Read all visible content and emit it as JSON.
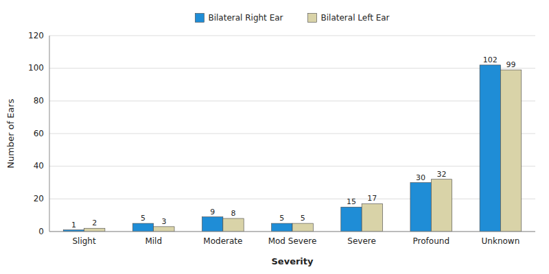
{
  "chart_data": {
    "type": "bar",
    "xlabel": "Severity",
    "ylabel": "Number of Ears",
    "categories": [
      "Slight",
      "Mild",
      "Moderate",
      "Mod Severe",
      "Severe",
      "Profound",
      "Unknown"
    ],
    "series": [
      {
        "name": "Bilateral Right Ear",
        "color": "#1F8DD6",
        "values": [
          1,
          5,
          9,
          5,
          15,
          30,
          102
        ]
      },
      {
        "name": "Bilateral Left Ear",
        "color": "#D9D3A8",
        "values": [
          2,
          3,
          8,
          5,
          17,
          32,
          99
        ]
      }
    ],
    "ylim": [
      0,
      120
    ],
    "yticks": [
      0,
      20,
      40,
      60,
      80,
      100,
      120
    ],
    "grid": true,
    "legend": "top",
    "data_labels": true
  }
}
